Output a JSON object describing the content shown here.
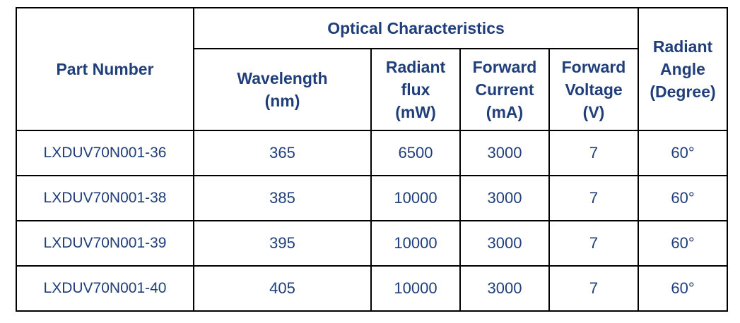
{
  "table": {
    "headers": {
      "part_number": "Part Number",
      "group": "Optical Characteristics",
      "radiant_angle": [
        "Radiant",
        "Angle",
        "(Degree)"
      ],
      "columns": [
        {
          "key": "wavelength",
          "lines": [
            "Wavelength",
            "(nm)"
          ]
        },
        {
          "key": "radiant_flux",
          "lines": [
            "Radiant",
            "flux",
            "(mW)"
          ]
        },
        {
          "key": "forward_current",
          "lines": [
            "Forward",
            "Current",
            "(mA)"
          ]
        },
        {
          "key": "forward_voltage",
          "lines": [
            "Forward",
            "Voltage",
            "(V)"
          ]
        }
      ]
    },
    "rows": [
      {
        "part": "LXDUV70N001-36",
        "wavelength": "365",
        "radiant_flux": "6500",
        "forward_current": "3000",
        "forward_voltage": "7",
        "radiant_angle": "60°"
      },
      {
        "part": "LXDUV70N001-38",
        "wavelength": "385",
        "radiant_flux": "10000",
        "forward_current": "3000",
        "forward_voltage": "7",
        "radiant_angle": "60°"
      },
      {
        "part": "LXDUV70N001-39",
        "wavelength": "395",
        "radiant_flux": "10000",
        "forward_current": "3000",
        "forward_voltage": "7",
        "radiant_angle": "60°"
      },
      {
        "part": "LXDUV70N001-40",
        "wavelength": "405",
        "radiant_flux": "10000",
        "forward_current": "3000",
        "forward_voltage": "7",
        "radiant_angle": "60°"
      }
    ]
  },
  "colors": {
    "text": "#1f3e7a",
    "border": "#000000",
    "background": "#ffffff"
  }
}
